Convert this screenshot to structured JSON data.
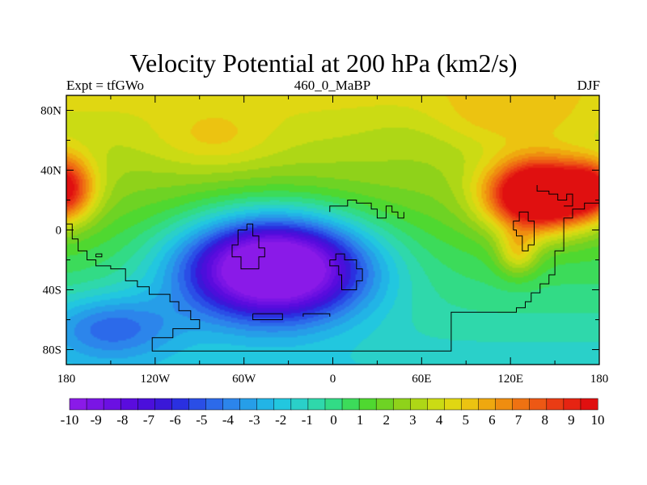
{
  "chart_data": {
    "type": "heatmap",
    "title": "Velocity Potential at 200 hPa (km2/s)",
    "subtitle_left": "Expt = tfGWo",
    "subtitle_center": "460_0_MaBP",
    "subtitle_right": "DJF",
    "x_ticks": [
      {
        "value": -180,
        "label": "180"
      },
      {
        "value": -120,
        "label": "120W"
      },
      {
        "value": -60,
        "label": "60W"
      },
      {
        "value": 0,
        "label": "0"
      },
      {
        "value": 60,
        "label": "60E"
      },
      {
        "value": 120,
        "label": "120E"
      },
      {
        "value": 180,
        "label": "180"
      }
    ],
    "y_ticks": [
      {
        "value": 80,
        "label": "80N"
      },
      {
        "value": 40,
        "label": "40N"
      },
      {
        "value": 0,
        "label": "0"
      },
      {
        "value": -40,
        "label": "40S"
      },
      {
        "value": -80,
        "label": "80S"
      }
    ],
    "xlim": [
      -180,
      180
    ],
    "ylim": [
      -90,
      90
    ],
    "value_range": [
      -10.5,
      10.5
    ],
    "features": [
      {
        "name": "Velocity potential minimum",
        "lon": -40,
        "lat": -25,
        "value": -10.2
      },
      {
        "name": "Velocity potential maximum",
        "lon": 140,
        "lat": 23,
        "value": 10.2
      },
      {
        "name": "Secondary maximum",
        "lon": -178,
        "lat": 27,
        "value": 7.5
      }
    ],
    "colorbar": {
      "labels": [
        "-10",
        "-9",
        "-8",
        "-7",
        "-6",
        "-5",
        "-4",
        "-3",
        "-2",
        "-1",
        "0",
        "1",
        "2",
        "3",
        "4",
        "5",
        "6",
        "7",
        "8",
        "9",
        "10"
      ],
      "colors": [
        "#8a1ae8",
        "#7a15e5",
        "#6b10e2",
        "#5a0cde",
        "#4b0fdb",
        "#3a18d8",
        "#2a30e0",
        "#2a4ee6",
        "#2c6aea",
        "#2c85eb",
        "#269ee8",
        "#22b4e6",
        "#22c7df",
        "#2ad0c9",
        "#2fd8ab",
        "#32db86",
        "#3cdb5a",
        "#4fd830",
        "#6ed324",
        "#8fd21a",
        "#aed716",
        "#cbdb14",
        "#e0d712",
        "#ecc311",
        "#efa80f",
        "#ef8d10",
        "#ef7212",
        "#ed5814",
        "#ea3c14",
        "#e62412",
        "#e01010"
      ]
    }
  }
}
